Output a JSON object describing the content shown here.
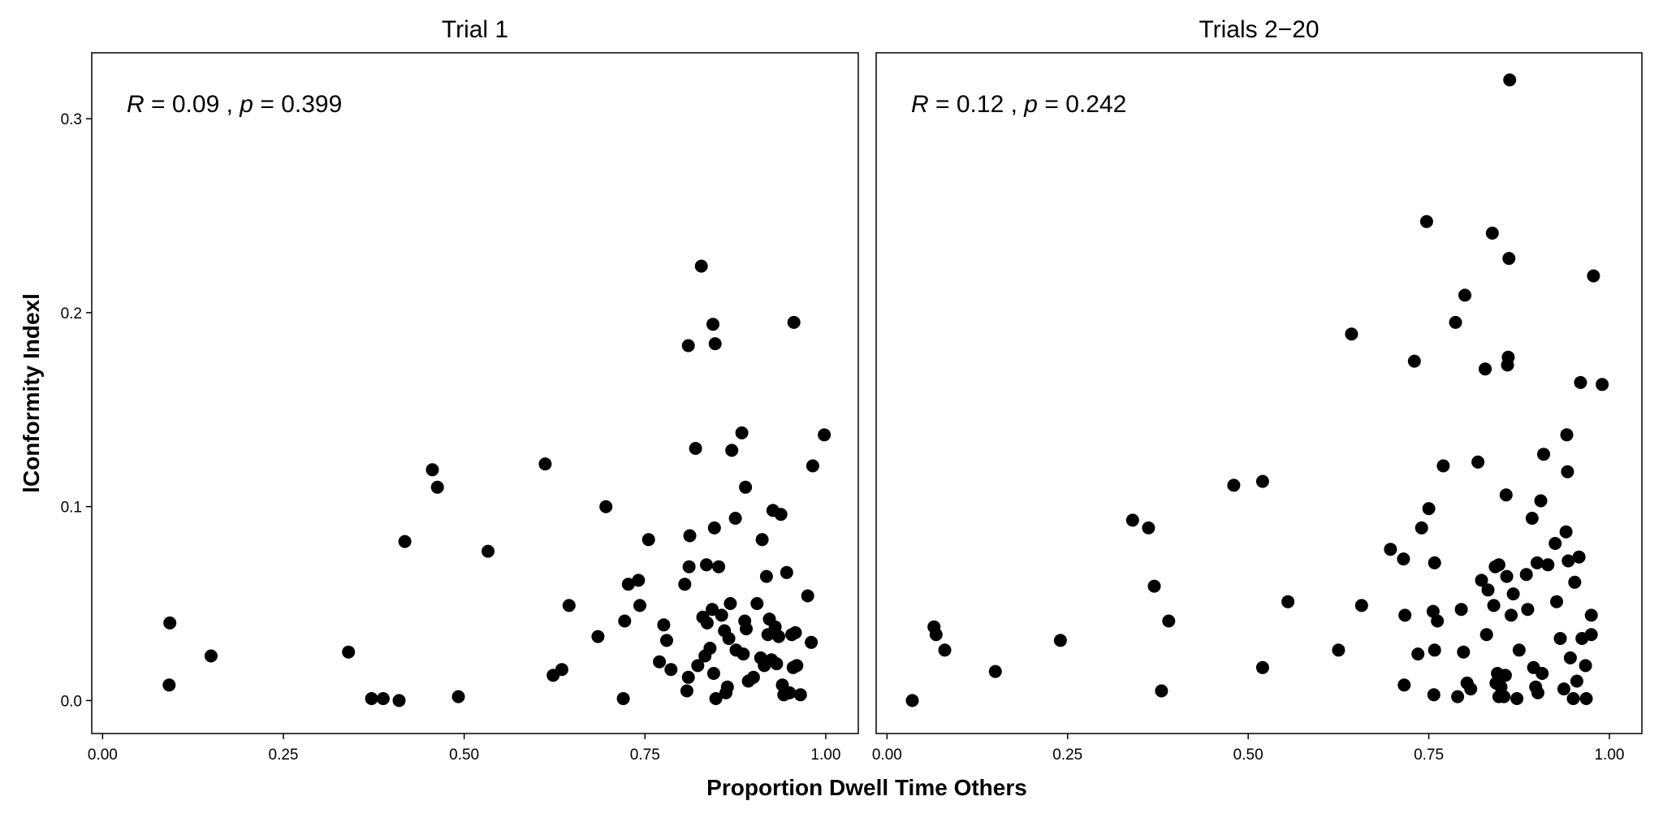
{
  "chart_data": {
    "type": "scatter",
    "xlabel": "Proportion Dwell Time Others",
    "ylabel": "lConformity Indexl",
    "xlim": [
      -0.015,
      1.045
    ],
    "ylim": [
      -0.017,
      0.334
    ],
    "x_ticks": [
      0.0,
      0.25,
      0.5,
      0.75,
      1.0
    ],
    "x_tick_labels": [
      "0.00",
      "0.25",
      "0.50",
      "0.75",
      "1.00"
    ],
    "y_ticks": [
      0.0,
      0.1,
      0.2,
      0.3
    ],
    "y_tick_labels": [
      "0.0",
      "0.1",
      "0.2",
      "0.3"
    ],
    "grid": false,
    "point_color": "#000000",
    "panels": [
      {
        "title": "Trial 1",
        "stat": {
          "r_symbol": "R",
          "r_value": "0.09",
          "sep": ",",
          "p_symbol": "p",
          "p_value": "0.399"
        },
        "points": [
          [
            0.093,
            0.04
          ],
          [
            0.092,
            0.008
          ],
          [
            0.15,
            0.023
          ],
          [
            0.34,
            0.025
          ],
          [
            0.372,
            0.001
          ],
          [
            0.388,
            0.001
          ],
          [
            0.41,
            0.0
          ],
          [
            0.418,
            0.082
          ],
          [
            0.456,
            0.119
          ],
          [
            0.463,
            0.11
          ],
          [
            0.492,
            0.002
          ],
          [
            0.533,
            0.077
          ],
          [
            0.612,
            0.122
          ],
          [
            0.623,
            0.013
          ],
          [
            0.635,
            0.016
          ],
          [
            0.645,
            0.049
          ],
          [
            0.685,
            0.033
          ],
          [
            0.696,
            0.1
          ],
          [
            0.72,
            0.001
          ],
          [
            0.722,
            0.041
          ],
          [
            0.727,
            0.06
          ],
          [
            0.741,
            0.062
          ],
          [
            0.743,
            0.049
          ],
          [
            0.755,
            0.083
          ],
          [
            0.77,
            0.02
          ],
          [
            0.776,
            0.039
          ],
          [
            0.78,
            0.031
          ],
          [
            0.786,
            0.016
          ],
          [
            0.805,
            0.06
          ],
          [
            0.808,
            0.005
          ],
          [
            0.81,
            0.183
          ],
          [
            0.811,
            0.069
          ],
          [
            0.81,
            0.012
          ],
          [
            0.812,
            0.085
          ],
          [
            0.82,
            0.13
          ],
          [
            0.823,
            0.018
          ],
          [
            0.828,
            0.224
          ],
          [
            0.83,
            0.043
          ],
          [
            0.833,
            0.023
          ],
          [
            0.835,
            0.07
          ],
          [
            0.836,
            0.04
          ],
          [
            0.84,
            0.027
          ],
          [
            0.843,
            0.047
          ],
          [
            0.844,
            0.194
          ],
          [
            0.845,
            0.014
          ],
          [
            0.846,
            0.089
          ],
          [
            0.847,
            0.184
          ],
          [
            0.848,
            0.001
          ],
          [
            0.852,
            0.069
          ],
          [
            0.856,
            0.044
          ],
          [
            0.86,
            0.036
          ],
          [
            0.862,
            0.004
          ],
          [
            0.864,
            0.007
          ],
          [
            0.866,
            0.032
          ],
          [
            0.868,
            0.05
          ],
          [
            0.87,
            0.129
          ],
          [
            0.875,
            0.094
          ],
          [
            0.876,
            0.026
          ],
          [
            0.884,
            0.138
          ],
          [
            0.886,
            0.024
          ],
          [
            0.888,
            0.041
          ],
          [
            0.889,
            0.11
          ],
          [
            0.89,
            0.037
          ],
          [
            0.893,
            0.01
          ],
          [
            0.9,
            0.012
          ],
          [
            0.905,
            0.05
          ],
          [
            0.91,
            0.022
          ],
          [
            0.912,
            0.083
          ],
          [
            0.915,
            0.018
          ],
          [
            0.918,
            0.064
          ],
          [
            0.92,
            0.034
          ],
          [
            0.922,
            0.042
          ],
          [
            0.925,
            0.021
          ],
          [
            0.927,
            0.098
          ],
          [
            0.93,
            0.038
          ],
          [
            0.932,
            0.019
          ],
          [
            0.935,
            0.033
          ],
          [
            0.938,
            0.096
          ],
          [
            0.94,
            0.008
          ],
          [
            0.942,
            0.003
          ],
          [
            0.946,
            0.066
          ],
          [
            0.95,
            0.004
          ],
          [
            0.953,
            0.034
          ],
          [
            0.955,
            0.017
          ],
          [
            0.956,
            0.195
          ],
          [
            0.958,
            0.035
          ],
          [
            0.96,
            0.018
          ],
          [
            0.965,
            0.003
          ],
          [
            0.975,
            0.054
          ],
          [
            0.98,
            0.03
          ],
          [
            0.982,
            0.121
          ],
          [
            0.998,
            0.137
          ]
        ]
      },
      {
        "title": "Trials 2−20",
        "stat": {
          "r_symbol": "R",
          "r_value": "0.12",
          "sep": ",",
          "p_symbol": "p",
          "p_value": "0.242"
        },
        "points": [
          [
            0.035,
            0.0
          ],
          [
            0.065,
            0.038
          ],
          [
            0.068,
            0.034
          ],
          [
            0.08,
            0.026
          ],
          [
            0.15,
            0.015
          ],
          [
            0.24,
            0.031
          ],
          [
            0.34,
            0.093
          ],
          [
            0.362,
            0.089
          ],
          [
            0.37,
            0.059
          ],
          [
            0.38,
            0.005
          ],
          [
            0.39,
            0.041
          ],
          [
            0.48,
            0.111
          ],
          [
            0.52,
            0.113
          ],
          [
            0.52,
            0.017
          ],
          [
            0.555,
            0.051
          ],
          [
            0.625,
            0.026
          ],
          [
            0.643,
            0.189
          ],
          [
            0.657,
            0.049
          ],
          [
            0.697,
            0.078
          ],
          [
            0.715,
            0.073
          ],
          [
            0.716,
            0.008
          ],
          [
            0.717,
            0.044
          ],
          [
            0.73,
            0.175
          ],
          [
            0.735,
            0.024
          ],
          [
            0.74,
            0.089
          ],
          [
            0.747,
            0.247
          ],
          [
            0.75,
            0.099
          ],
          [
            0.756,
            0.046
          ],
          [
            0.757,
            0.003
          ],
          [
            0.758,
            0.026
          ],
          [
            0.758,
            0.071
          ],
          [
            0.762,
            0.041
          ],
          [
            0.77,
            0.121
          ],
          [
            0.787,
            0.195
          ],
          [
            0.79,
            0.002
          ],
          [
            0.795,
            0.047
          ],
          [
            0.798,
            0.025
          ],
          [
            0.8,
            0.209
          ],
          [
            0.803,
            0.009
          ],
          [
            0.808,
            0.006
          ],
          [
            0.818,
            0.123
          ],
          [
            0.823,
            0.062
          ],
          [
            0.828,
            0.171
          ],
          [
            0.83,
            0.034
          ],
          [
            0.832,
            0.057
          ],
          [
            0.838,
            0.241
          ],
          [
            0.84,
            0.049
          ],
          [
            0.842,
            0.069
          ],
          [
            0.843,
            0.009
          ],
          [
            0.845,
            0.014
          ],
          [
            0.847,
            0.07
          ],
          [
            0.847,
            0.002
          ],
          [
            0.85,
            0.007
          ],
          [
            0.854,
            0.002
          ],
          [
            0.856,
            0.013
          ],
          [
            0.857,
            0.106
          ],
          [
            0.858,
            0.064
          ],
          [
            0.859,
            0.173
          ],
          [
            0.86,
            0.177
          ],
          [
            0.861,
            0.228
          ],
          [
            0.862,
            0.32
          ],
          [
            0.864,
            0.044
          ],
          [
            0.867,
            0.055
          ],
          [
            0.872,
            0.001
          ],
          [
            0.875,
            0.026
          ],
          [
            0.885,
            0.065
          ],
          [
            0.887,
            0.047
          ],
          [
            0.893,
            0.094
          ],
          [
            0.895,
            0.017
          ],
          [
            0.898,
            0.007
          ],
          [
            0.9,
            0.071
          ],
          [
            0.901,
            0.004
          ],
          [
            0.905,
            0.103
          ],
          [
            0.907,
            0.014
          ],
          [
            0.909,
            0.127
          ],
          [
            0.915,
            0.07
          ],
          [
            0.925,
            0.081
          ],
          [
            0.927,
            0.051
          ],
          [
            0.932,
            0.032
          ],
          [
            0.937,
            0.006
          ],
          [
            0.94,
            0.087
          ],
          [
            0.941,
            0.137
          ],
          [
            0.942,
            0.118
          ],
          [
            0.943,
            0.072
          ],
          [
            0.946,
            0.022
          ],
          [
            0.95,
            0.001
          ],
          [
            0.952,
            0.061
          ],
          [
            0.955,
            0.01
          ],
          [
            0.958,
            0.074
          ],
          [
            0.96,
            0.164
          ],
          [
            0.962,
            0.032
          ],
          [
            0.967,
            0.018
          ],
          [
            0.968,
            0.001
          ],
          [
            0.975,
            0.034
          ],
          [
            0.975,
            0.044
          ],
          [
            0.978,
            0.219
          ],
          [
            0.99,
            0.163
          ]
        ]
      }
    ]
  }
}
